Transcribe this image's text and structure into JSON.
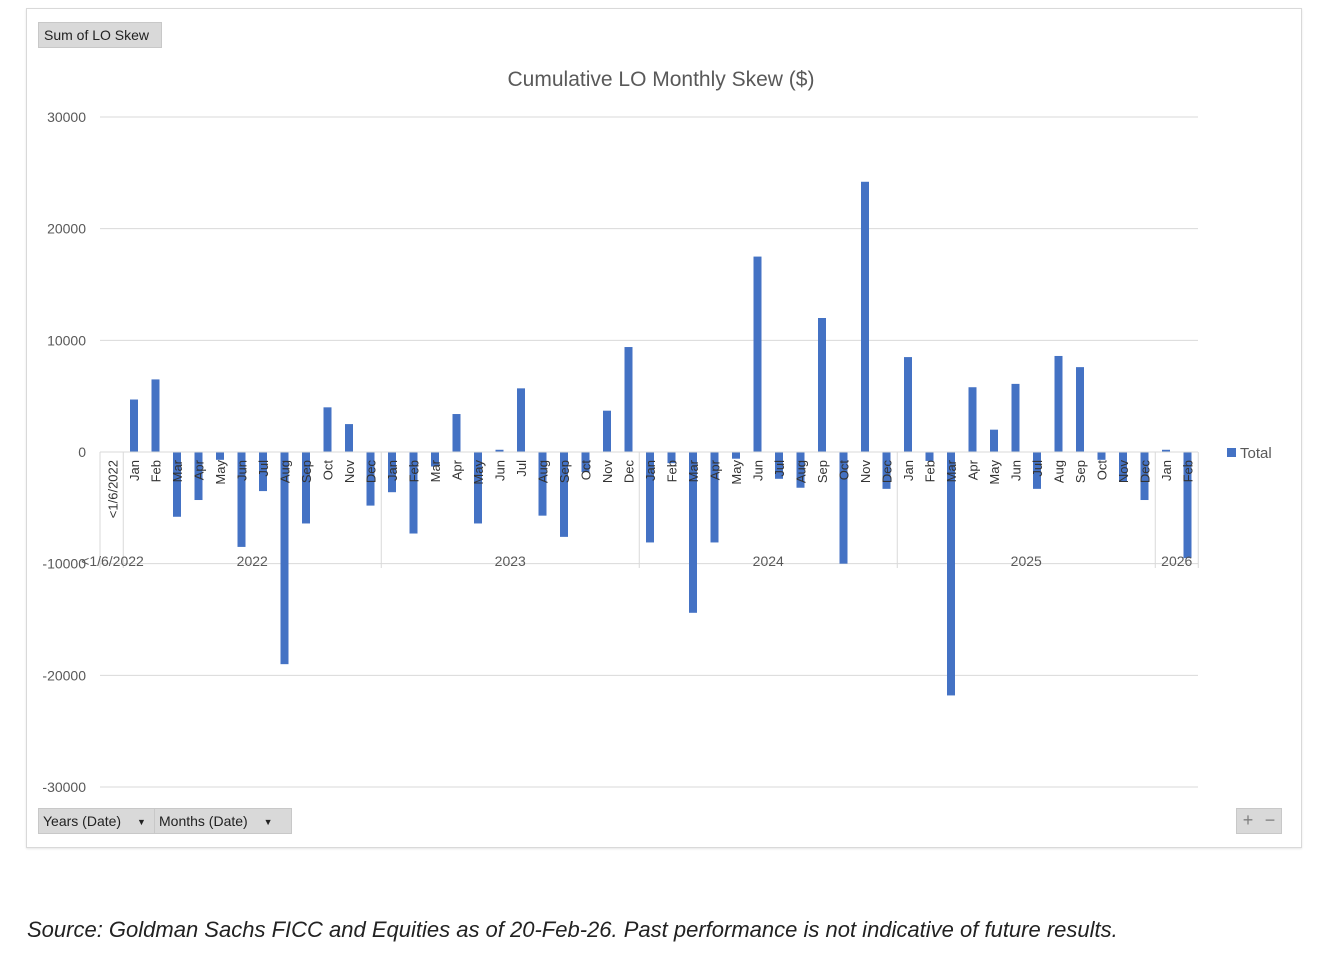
{
  "source_note": "Source: Goldman Sachs FICC and Equities as of 20-Feb-26. Past performance is not indicative of future results.",
  "pivot": {
    "value_field": "Sum of LO Skew",
    "axis_fields": [
      "Years (Date)",
      "Months (Date)"
    ],
    "expand_label": "+",
    "collapse_label": "−"
  },
  "colors": {
    "bar": "#4472C4",
    "grid": "#d9d9d9",
    "text": "#595959"
  },
  "chart_data": {
    "type": "bar",
    "title": "Cumulative LO Monthly Skew ($)",
    "xlabel": "",
    "ylabel": "",
    "ylim": [
      -30000,
      30000
    ],
    "yticks": [
      30000,
      20000,
      10000,
      0,
      -10000,
      -20000,
      -30000
    ],
    "grid": true,
    "legend": {
      "position": "right",
      "entries": [
        "Total"
      ]
    },
    "groups": [
      {
        "label": "<1/6/2022",
        "months": [
          "<1/6/2022"
        ]
      },
      {
        "label": "2022",
        "months": [
          "Jan",
          "Feb",
          "Mar",
          "Apr",
          "May",
          "Jun",
          "Jul",
          "Aug",
          "Sep",
          "Oct",
          "Nov",
          "Dec"
        ]
      },
      {
        "label": "2023",
        "months": [
          "Jan",
          "Feb",
          "Mar",
          "Apr",
          "May",
          "Jun",
          "Jul",
          "Aug",
          "Sep",
          "Oct",
          "Nov",
          "Dec"
        ]
      },
      {
        "label": "2024",
        "months": [
          "Jan",
          "Feb",
          "Mar",
          "Apr",
          "May",
          "Jun",
          "Jul",
          "Aug",
          "Sep",
          "Oct",
          "Nov",
          "Dec"
        ]
      },
      {
        "label": "2025",
        "months": [
          "Jan",
          "Feb",
          "Mar",
          "Apr",
          "May",
          "Jun",
          "Jul",
          "Aug",
          "Sep",
          "Oct",
          "Nov",
          "Dec"
        ]
      },
      {
        "label": "2026",
        "months": [
          "Jan",
          "Feb"
        ]
      }
    ],
    "series": [
      {
        "name": "Total",
        "values": [
          0,
          4700,
          6500,
          -5800,
          -4300,
          -700,
          -8500,
          -3500,
          -19000,
          -6400,
          4000,
          2500,
          -4800,
          -3600,
          -7300,
          -1300,
          3400,
          -6400,
          200,
          5700,
          -5700,
          -7600,
          -1800,
          3700,
          9400,
          -8100,
          -1000,
          -14400,
          -8100,
          -600,
          17500,
          -2400,
          -3200,
          12000,
          -10000,
          24200,
          -3300,
          8500,
          -800,
          -21800,
          5800,
          2000,
          6100,
          -3300,
          8600,
          7600,
          -700,
          -2600,
          -4300,
          200,
          -9500
        ]
      }
    ]
  }
}
